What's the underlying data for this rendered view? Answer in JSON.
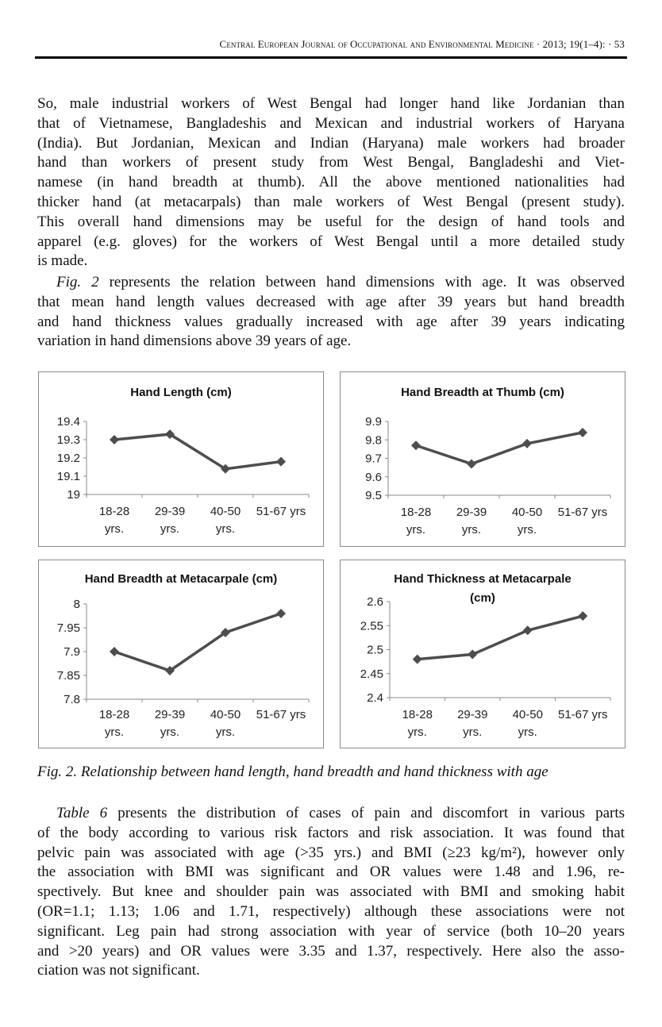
{
  "header": {
    "journal": "Central European Journal of Occupational and Environmental Medicine · 2013; 19(1–4): · 53"
  },
  "paragraph1": [
    "So, male industrial workers of West Bengal had longer hand like Jordanian than",
    "that of Vietnamese, Bangladeshis and Mexican and industrial workers of Haryana",
    "(India). But Jordanian, Mexican and Indian (Haryana) male workers had broader",
    "hand than workers of present study from West Bengal, Bangladeshi and Viet-",
    "namese (in hand breadth at thumb). All the above mentioned nationalities had",
    "thicker hand (at metacarpals) than male workers of West Bengal (present study).",
    "This overall hand dimensions may be useful for the design of hand tools and",
    "apparel (e.g. gloves) for the workers of West Bengal until a more detailed study",
    "is made."
  ],
  "paragraph2": {
    "ref": "Fig. 2",
    "first": " represents the relation between hand dimensions with age. It was observed",
    "lines": [
      "that mean hand length values decreased with age after 39 years but hand breadth",
      "and hand thickness values gradually increased with age after 39 years indicating",
      "variation in hand dimensions above 39 years of age."
    ]
  },
  "chart_data": [
    {
      "type": "line",
      "title": "Hand Length (cm)",
      "categories": [
        [
          "18-28",
          "yrs."
        ],
        [
          "29-39",
          "yrs."
        ],
        [
          "40-50",
          "yrs."
        ],
        [
          "51-67 yrs",
          ""
        ]
      ],
      "values": [
        19.3,
        19.33,
        19.14,
        19.18
      ],
      "ylim": [
        19,
        19.4
      ],
      "yticks": [
        "19",
        "19.1",
        "19.2",
        "19.3",
        "19.4"
      ],
      "grid": false,
      "color": "#4d4d4d"
    },
    {
      "type": "line",
      "title": "Hand Breadth at Thumb (cm)",
      "categories": [
        [
          "18-28",
          "yrs."
        ],
        [
          "29-39",
          "yrs."
        ],
        [
          "40-50",
          "yrs."
        ],
        [
          "51-67 yrs",
          ""
        ]
      ],
      "values": [
        9.77,
        9.67,
        9.78,
        9.84
      ],
      "ylim": [
        9.5,
        9.9
      ],
      "yticks": [
        "9.5",
        "9.6",
        "9.7",
        "9.8",
        "9.9"
      ],
      "grid": false,
      "color": "#4d4d4d"
    },
    {
      "type": "line",
      "title": "Hand Breadth at Metacarpale (cm)",
      "categories": [
        [
          "18-28",
          "yrs."
        ],
        [
          "29-39",
          "yrs."
        ],
        [
          "40-50",
          "yrs."
        ],
        [
          "51-67 yrs",
          ""
        ]
      ],
      "values": [
        7.9,
        7.86,
        7.94,
        7.98
      ],
      "ylim": [
        7.8,
        8.0
      ],
      "yticks": [
        "7.8",
        "7.85",
        "7.9",
        "7.95",
        "8"
      ],
      "grid": false,
      "color": "#4d4d4d"
    },
    {
      "type": "line",
      "title": "Hand Thickness at Metacarpale",
      "title2": "(cm)",
      "categories": [
        [
          "18-28",
          "yrs."
        ],
        [
          "29-39",
          "yrs."
        ],
        [
          "40-50",
          "yrs."
        ],
        [
          "51-67 yrs",
          ""
        ]
      ],
      "values": [
        2.48,
        2.49,
        2.54,
        2.57
      ],
      "ylim": [
        2.4,
        2.6
      ],
      "yticks": [
        "2.4",
        "2.45",
        "2.5",
        "2.55",
        "2.6"
      ],
      "grid": false,
      "color": "#4d4d4d"
    }
  ],
  "caption": "Fig. 2. Relationship between hand length, hand breadth and hand thickness with age",
  "paragraph3": {
    "ref": "Table 6",
    "first": " presents the distribution of cases of pain and discomfort in various parts",
    "lines": [
      "of the body according to various risk factors and risk association. It was found that",
      "pelvic pain was associated with age (>35 yrs.) and BMI (≥23 kg/m²), however only",
      "the association with BMI was significant and OR values were 1.48 and 1.96, re-",
      "spectively. But knee and shoulder pain was associated with BMI and smoking habit",
      "(OR=1.1; 1.13; 1.06 and 1.71, respectively) although these associations were not",
      "significant. Leg pain had strong association with year of service (both 10–20 years",
      "and >20 years) and OR values were 3.35 and 1.37, respectively. Here also the asso-",
      "ciation was not significant."
    ]
  }
}
